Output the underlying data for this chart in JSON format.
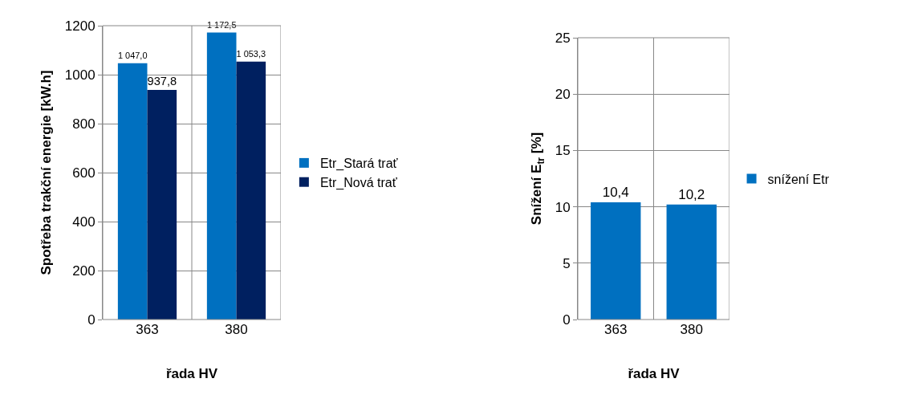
{
  "chart_data": [
    {
      "type": "bar",
      "categories": [
        "363",
        "380"
      ],
      "xlabel": "řada HV",
      "ylabel": "Spotřeba trakční energie [kW.h]",
      "ylim": [
        0,
        1200
      ],
      "yticks": [
        0,
        200,
        400,
        600,
        800,
        1000,
        1200
      ],
      "grid": true,
      "legend": "right",
      "series": [
        {
          "name": "Etr_Stará trať",
          "color": "#0070c0",
          "values": [
            1047.0,
            1172.5
          ],
          "value_labels": [
            "1 047,0",
            "1 172,5"
          ]
        },
        {
          "name": "Etr_Nová trať",
          "color": "#002060",
          "values": [
            937.8,
            1053.3
          ],
          "value_labels": [
            "937,8",
            "1 053,3"
          ]
        }
      ]
    },
    {
      "type": "bar",
      "categories": [
        "363",
        "380"
      ],
      "xlabel": "řada HV",
      "ylabel": "Snížení E$_{tr}$ [%]",
      "ylim": [
        0,
        25
      ],
      "yticks": [
        0,
        5,
        10,
        15,
        20,
        25
      ],
      "grid": true,
      "legend": "right",
      "series": [
        {
          "name": "snížení Etr",
          "color": "#0070c0",
          "values": [
            10.4,
            10.2
          ],
          "value_labels": [
            "10,4",
            "10,2"
          ]
        }
      ]
    }
  ]
}
